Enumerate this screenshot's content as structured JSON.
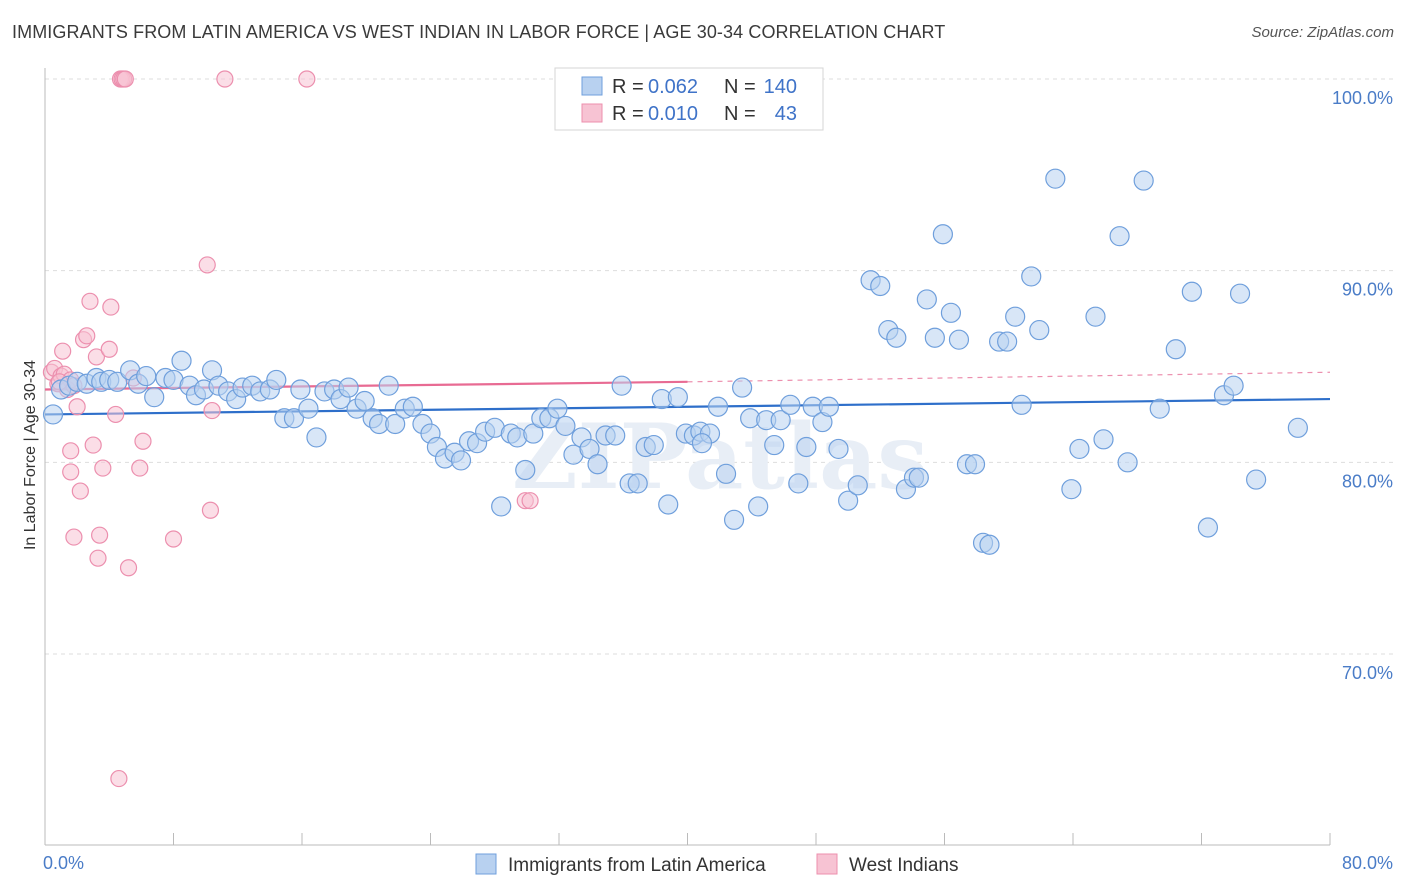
{
  "title": "IMMIGRANTS FROM LATIN AMERICA VS WEST INDIAN IN LABOR FORCE | AGE 30-34 CORRELATION CHART",
  "source": "Source: ZipAtlas.com",
  "watermark": "ZIPatlas",
  "legend": {
    "rows": [
      {
        "r_label": "R = ",
        "r_value": "0.062",
        "n_label": "N = ",
        "n_value": "140"
      },
      {
        "r_label": "R = ",
        "r_value": "0.010",
        "n_label": "N = ",
        "n_value": "43"
      }
    ]
  },
  "colors": {
    "blue_fill": "#b8d1f0",
    "blue_stroke": "#6f9fdc",
    "blue_line": "#2e6fca",
    "pink_fill": "#f7c3d3",
    "pink_stroke": "#ec8fae",
    "pink_line": "#e86b93",
    "grid": "#dddddd",
    "axis_label": "#4a7cc7"
  },
  "chart_data": {
    "type": "scatter",
    "title": "IMMIGRANTS FROM LATIN AMERICA VS WEST INDIAN IN LABOR FORCE | AGE 30-34 CORRELATION CHART",
    "xlabel": "",
    "ylabel": "In Labor Force | Age 30-34",
    "xlim": [
      0,
      80
    ],
    "ylim": [
      60,
      101
    ],
    "x_tick_labels": [
      "0.0%",
      "80.0%"
    ],
    "y_ticks": [
      70,
      80,
      90,
      100
    ],
    "y_tick_labels": [
      "70.0%",
      "80.0%",
      "90.0%",
      "100.0%"
    ],
    "grid": true,
    "legend_position": "top-center",
    "series": [
      {
        "name": "Immigrants from Latin America",
        "R": 0.062,
        "N": 140,
        "trend": {
          "x": [
            0,
            80
          ],
          "y": [
            82.5,
            83.3
          ]
        },
        "points": [
          [
            0.5,
            82.5
          ],
          [
            1.0,
            83.8
          ],
          [
            1.5,
            84.0
          ],
          [
            2.0,
            84.2
          ],
          [
            2.6,
            84.1
          ],
          [
            3.2,
            84.4
          ],
          [
            3.5,
            84.2
          ],
          [
            4.0,
            84.3
          ],
          [
            4.5,
            84.2
          ],
          [
            5.3,
            84.8
          ],
          [
            5.8,
            84.1
          ],
          [
            6.3,
            84.5
          ],
          [
            6.8,
            83.4
          ],
          [
            7.5,
            84.4
          ],
          [
            8.0,
            84.3
          ],
          [
            8.5,
            85.3
          ],
          [
            9.0,
            84.0
          ],
          [
            9.4,
            83.5
          ],
          [
            9.9,
            83.8
          ],
          [
            10.4,
            84.8
          ],
          [
            10.8,
            84.0
          ],
          [
            11.4,
            83.7
          ],
          [
            11.9,
            83.3
          ],
          [
            12.3,
            83.9
          ],
          [
            12.9,
            84.0
          ],
          [
            13.4,
            83.7
          ],
          [
            14.0,
            83.8
          ],
          [
            14.4,
            84.3
          ],
          [
            14.9,
            82.3
          ],
          [
            15.5,
            82.3
          ],
          [
            15.9,
            83.8
          ],
          [
            16.4,
            82.8
          ],
          [
            16.9,
            81.3
          ],
          [
            17.4,
            83.7
          ],
          [
            18.0,
            83.8
          ],
          [
            18.4,
            83.3
          ],
          [
            18.9,
            83.9
          ],
          [
            19.4,
            82.8
          ],
          [
            19.9,
            83.2
          ],
          [
            20.4,
            82.3
          ],
          [
            20.8,
            82.0
          ],
          [
            21.4,
            84.0
          ],
          [
            21.8,
            82.0
          ],
          [
            22.4,
            82.8
          ],
          [
            22.9,
            82.9
          ],
          [
            23.5,
            82.0
          ],
          [
            24.0,
            81.5
          ],
          [
            24.4,
            80.8
          ],
          [
            24.9,
            80.2
          ],
          [
            25.5,
            80.5
          ],
          [
            25.9,
            80.1
          ],
          [
            26.4,
            81.1
          ],
          [
            26.9,
            81.0
          ],
          [
            27.4,
            81.6
          ],
          [
            28.0,
            81.8
          ],
          [
            28.4,
            77.7
          ],
          [
            29.0,
            81.5
          ],
          [
            29.4,
            81.3
          ],
          [
            29.9,
            79.6
          ],
          [
            30.4,
            81.5
          ],
          [
            30.9,
            82.3
          ],
          [
            31.4,
            82.3
          ],
          [
            31.9,
            82.8
          ],
          [
            32.4,
            81.9
          ],
          [
            32.9,
            80.4
          ],
          [
            33.4,
            81.3
          ],
          [
            33.9,
            80.7
          ],
          [
            34.4,
            79.9
          ],
          [
            34.9,
            81.4
          ],
          [
            35.5,
            81.4
          ],
          [
            35.9,
            84.0
          ],
          [
            36.4,
            78.9
          ],
          [
            36.9,
            78.9
          ],
          [
            37.4,
            80.8
          ],
          [
            37.9,
            80.9
          ],
          [
            38.4,
            83.3
          ],
          [
            38.8,
            77.8
          ],
          [
            39.4,
            83.4
          ],
          [
            39.9,
            81.5
          ],
          [
            40.4,
            81.4
          ],
          [
            40.8,
            81.6
          ],
          [
            41.4,
            81.5
          ],
          [
            41.9,
            82.9
          ],
          [
            42.4,
            79.4
          ],
          [
            42.9,
            77.0
          ],
          [
            43.4,
            83.9
          ],
          [
            43.9,
            82.3
          ],
          [
            44.4,
            77.7
          ],
          [
            44.9,
            82.2
          ],
          [
            45.4,
            80.9
          ],
          [
            45.8,
            82.2
          ],
          [
            46.4,
            83.0
          ],
          [
            46.9,
            78.9
          ],
          [
            47.4,
            80.8
          ],
          [
            47.8,
            82.9
          ],
          [
            48.4,
            82.1
          ],
          [
            48.8,
            82.9
          ],
          [
            49.4,
            80.7
          ],
          [
            50.0,
            78.0
          ],
          [
            50.6,
            78.8
          ],
          [
            51.4,
            89.5
          ],
          [
            52.0,
            89.2
          ],
          [
            52.5,
            86.9
          ],
          [
            53.0,
            86.5
          ],
          [
            53.6,
            78.6
          ],
          [
            54.1,
            79.2
          ],
          [
            54.4,
            79.2
          ],
          [
            55.4,
            86.5
          ],
          [
            55.9,
            91.9
          ],
          [
            56.4,
            87.8
          ],
          [
            56.9,
            86.4
          ],
          [
            57.4,
            79.9
          ],
          [
            58.4,
            75.8
          ],
          [
            58.8,
            75.7
          ],
          [
            59.4,
            86.3
          ],
          [
            59.9,
            86.3
          ],
          [
            60.4,
            87.6
          ],
          [
            60.8,
            83.0
          ],
          [
            61.4,
            89.7
          ],
          [
            61.9,
            86.9
          ],
          [
            62.9,
            94.8
          ],
          [
            63.9,
            78.6
          ],
          [
            64.4,
            80.7
          ],
          [
            65.4,
            87.6
          ],
          [
            65.9,
            81.2
          ],
          [
            66.9,
            91.8
          ],
          [
            67.4,
            80.0
          ],
          [
            68.4,
            94.7
          ],
          [
            69.4,
            82.8
          ],
          [
            70.4,
            85.9
          ],
          [
            71.4,
            88.9
          ],
          [
            72.4,
            76.6
          ],
          [
            73.4,
            83.5
          ],
          [
            74.0,
            84.0
          ],
          [
            74.4,
            88.8
          ],
          [
            75.4,
            79.1
          ],
          [
            78.0,
            81.8
          ],
          [
            54.9,
            88.5
          ],
          [
            57.9,
            79.9
          ],
          [
            40.9,
            81.0
          ]
        ]
      },
      {
        "name": "West Indians",
        "R": 0.01,
        "N": 43,
        "trend": {
          "x": [
            0,
            40
          ],
          "y": [
            83.8,
            84.2
          ]
        },
        "trend_dashed": {
          "x": [
            40,
            80
          ],
          "y": [
            84.2,
            84.7
          ]
        },
        "points": [
          [
            0.4,
            84.7
          ],
          [
            0.6,
            84.9
          ],
          [
            0.8,
            84.1
          ],
          [
            1.0,
            84.5
          ],
          [
            1.2,
            84.6
          ],
          [
            1.4,
            83.8
          ],
          [
            1.6,
            84.3
          ],
          [
            1.8,
            84.0
          ],
          [
            1.1,
            85.8
          ],
          [
            1.6,
            80.6
          ],
          [
            1.6,
            79.5
          ],
          [
            1.8,
            76.1
          ],
          [
            2.0,
            82.9
          ],
          [
            2.2,
            78.5
          ],
          [
            2.4,
            86.4
          ],
          [
            2.6,
            86.6
          ],
          [
            2.8,
            88.4
          ],
          [
            3.0,
            80.9
          ],
          [
            3.2,
            85.5
          ],
          [
            3.3,
            75.0
          ],
          [
            3.4,
            76.2
          ],
          [
            3.6,
            79.7
          ],
          [
            4.0,
            85.9
          ],
          [
            4.1,
            88.1
          ],
          [
            4.4,
            82.5
          ],
          [
            4.6,
            63.5
          ],
          [
            4.7,
            100.0
          ],
          [
            4.8,
            100.0
          ],
          [
            4.9,
            100.0
          ],
          [
            5.0,
            100.0
          ],
          [
            5.2,
            74.5
          ],
          [
            5.5,
            84.4
          ],
          [
            5.9,
            79.7
          ],
          [
            6.1,
            81.1
          ],
          [
            8.0,
            76.0
          ],
          [
            10.1,
            90.3
          ],
          [
            10.3,
            77.5
          ],
          [
            10.4,
            82.7
          ],
          [
            11.2,
            100.0
          ],
          [
            16.3,
            100.0
          ],
          [
            29.9,
            78.0
          ],
          [
            30.2,
            78.0
          ],
          [
            0.9,
            84.2
          ]
        ]
      }
    ]
  },
  "bottom_legend": [
    "Immigrants from Latin America",
    "West Indians"
  ]
}
